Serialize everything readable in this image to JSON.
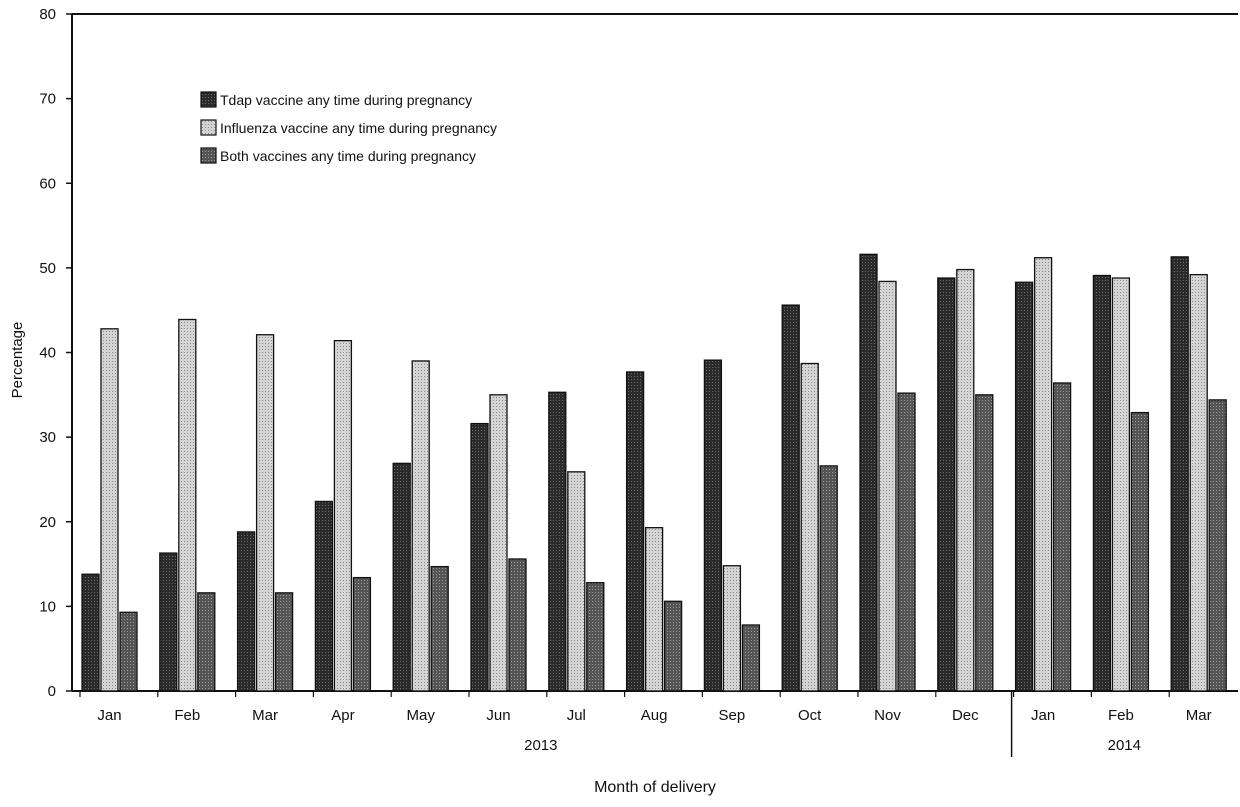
{
  "chart_data": {
    "type": "bar",
    "title": "",
    "xlabel": "Month of delivery",
    "ylabel": "Percentage",
    "ylim": [
      0,
      80
    ],
    "yticks": [
      0,
      10,
      20,
      30,
      40,
      50,
      60,
      70,
      80
    ],
    "grid": false,
    "legend_position": "top-left",
    "categories": [
      "Jan",
      "Feb",
      "Mar",
      "Apr",
      "May",
      "Jun",
      "Jul",
      "Aug",
      "Sep",
      "Oct",
      "Nov",
      "Dec",
      "Jan",
      "Feb",
      "Mar"
    ],
    "year_groups": [
      {
        "label": "2013",
        "count": 12
      },
      {
        "label": "2014",
        "count": 3
      }
    ],
    "series": [
      {
        "name": "Tdap vaccine any time during pregnancy",
        "color": "#2b2b2b",
        "values": [
          13.8,
          16.3,
          18.8,
          22.4,
          26.9,
          31.6,
          35.3,
          37.7,
          39.1,
          45.6,
          51.6,
          48.8,
          48.3,
          49.1,
          51.3
        ]
      },
      {
        "name": "Influenza vaccine any time during pregnancy",
        "color": "#c9c9c9",
        "values": [
          42.8,
          43.9,
          42.1,
          41.4,
          39.0,
          35.0,
          25.9,
          19.3,
          14.8,
          38.7,
          48.4,
          49.8,
          51.2,
          48.8,
          49.2
        ]
      },
      {
        "name": "Both vaccines any time during pregnancy",
        "color": "#595959",
        "values": [
          9.3,
          11.6,
          11.6,
          13.4,
          14.7,
          15.6,
          12.8,
          10.6,
          7.8,
          26.6,
          35.2,
          35.0,
          36.4,
          32.9,
          34.4
        ]
      }
    ]
  }
}
